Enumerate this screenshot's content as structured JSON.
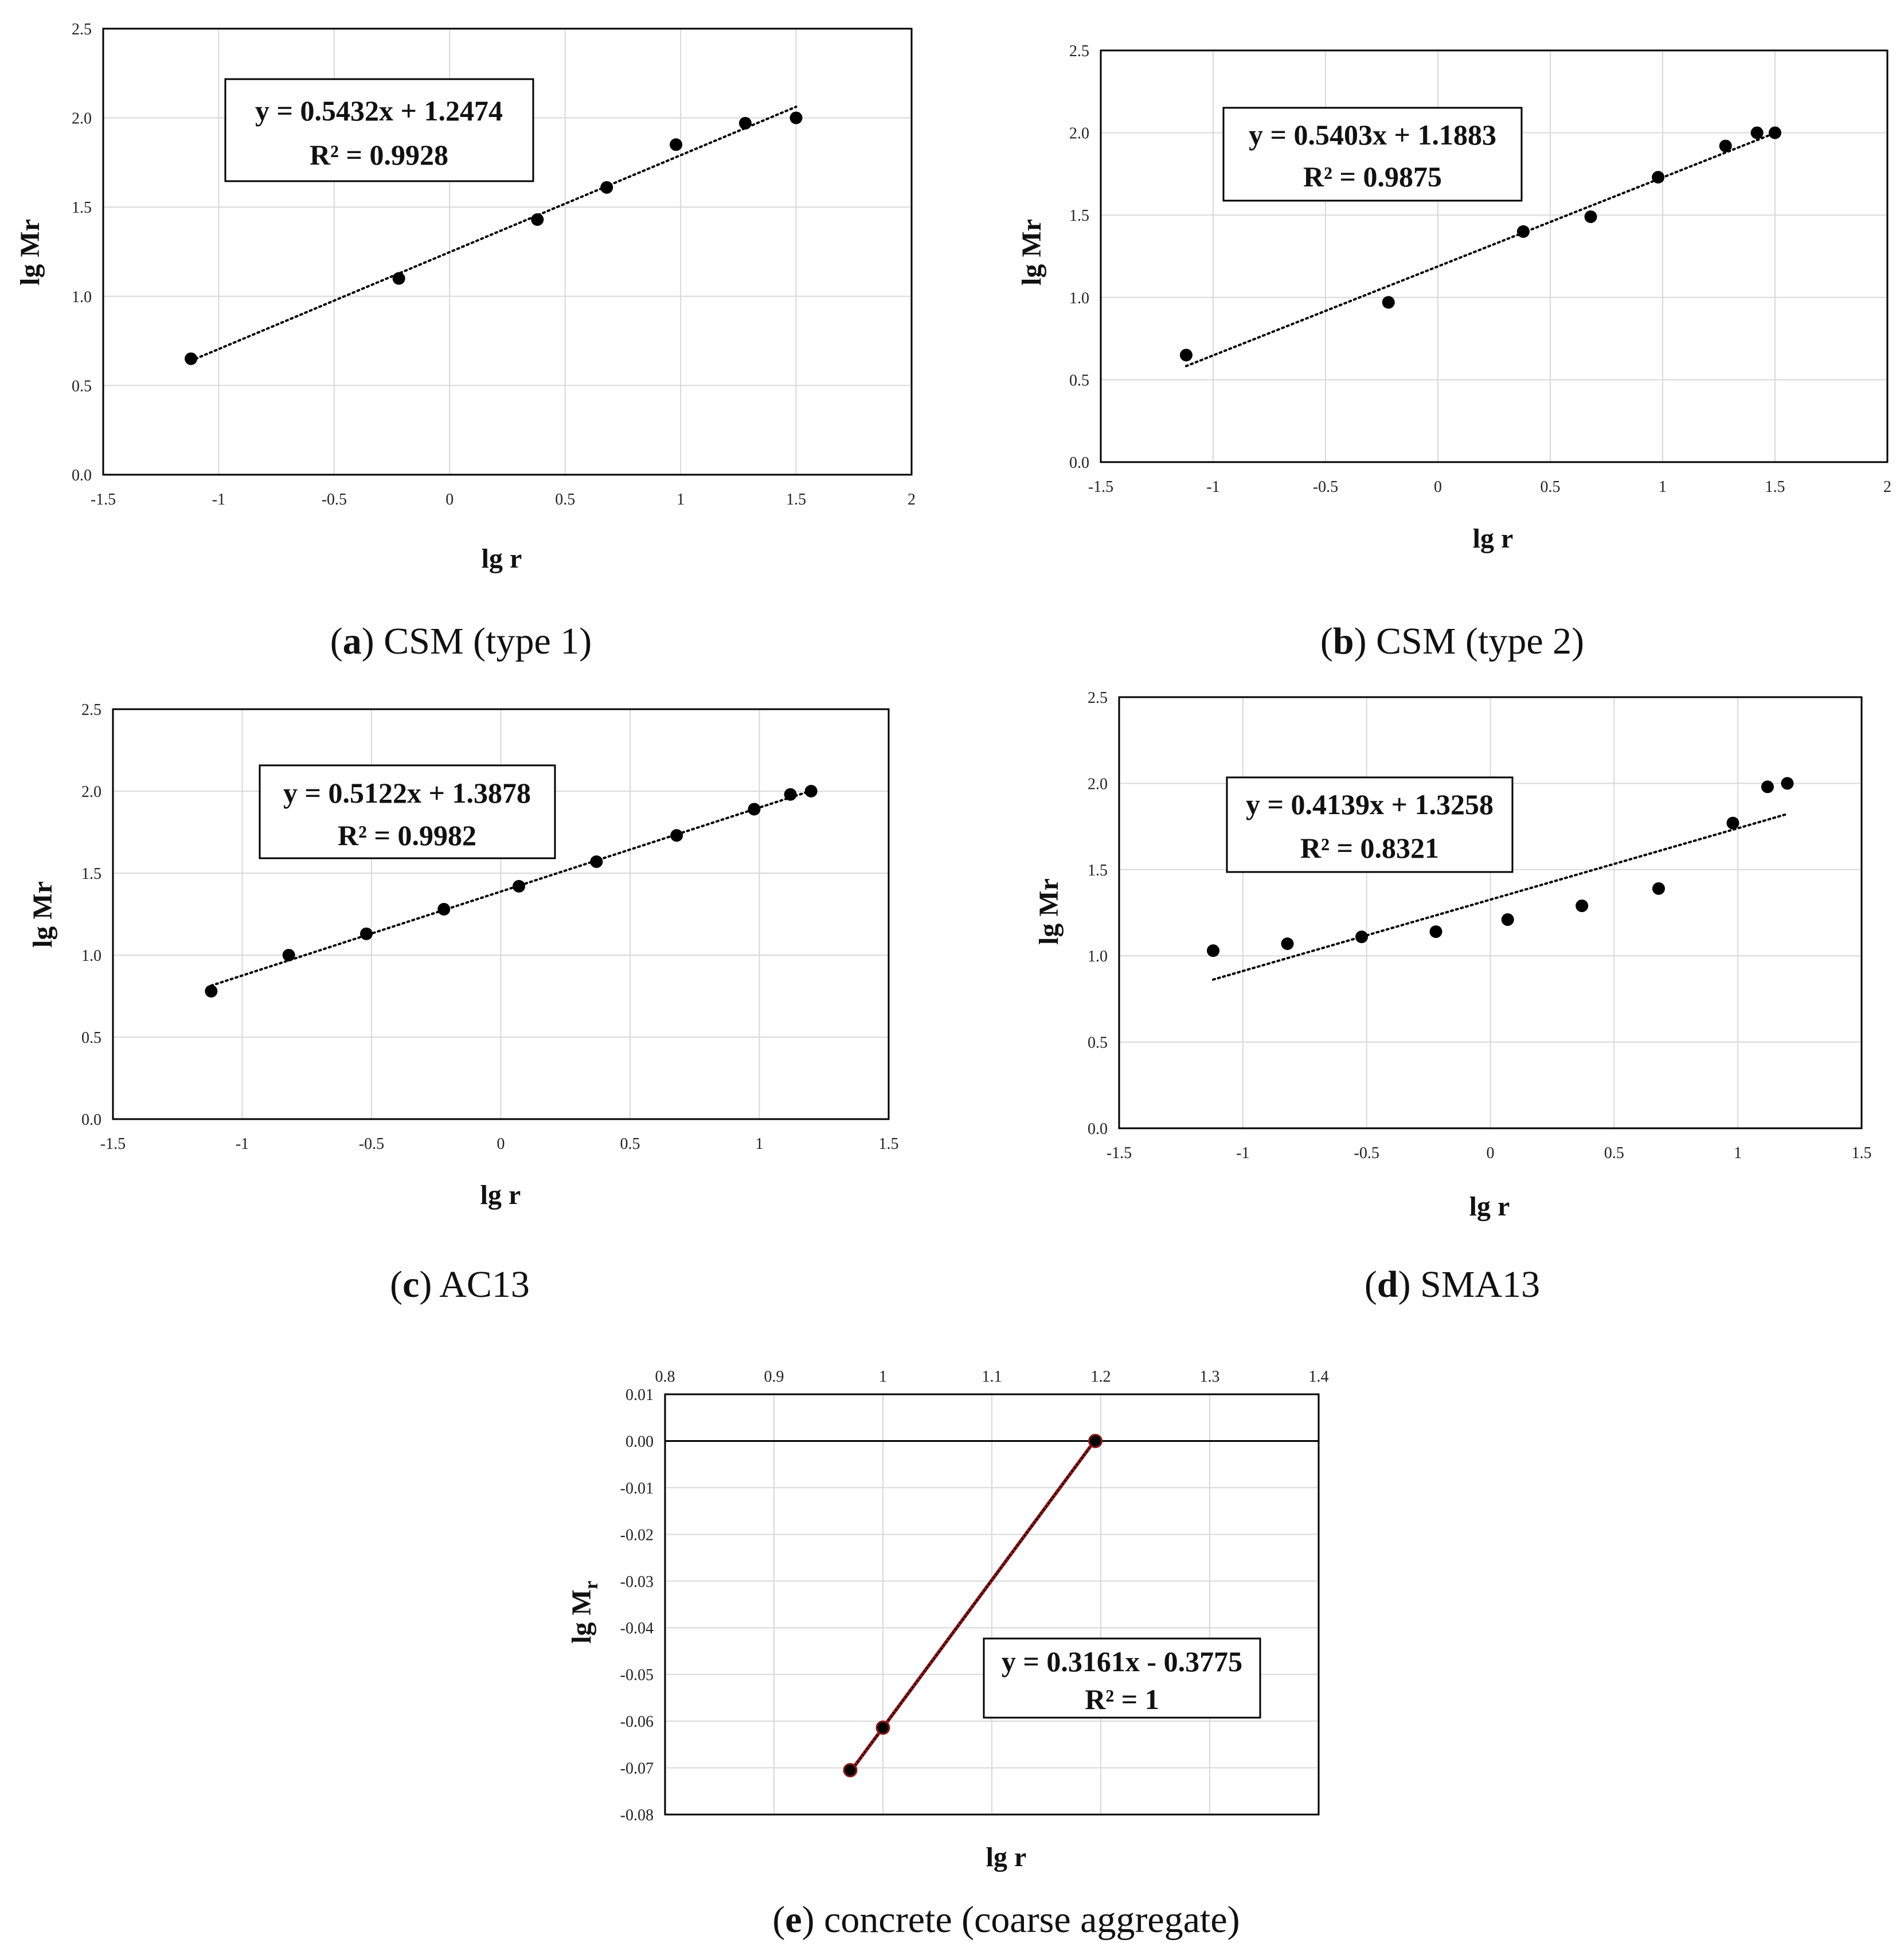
{
  "colors": {
    "grid": "#d9d9d9",
    "frame": "#000000",
    "point": "#000000",
    "trend": "#000000",
    "trend_e": "#8b1a1a",
    "background": "#ffffff"
  },
  "chart_data": [
    {
      "id": "a",
      "type": "scatter",
      "caption_letter": "a",
      "caption_text": "CSM (type 1)",
      "xlabel": "lg r",
      "ylabel": "lg Mr",
      "xlim": [
        -1.5,
        2
      ],
      "ylim": [
        0,
        2.5
      ],
      "xticks": [
        "-1.5",
        "-1",
        "-0.5",
        "0",
        "0.5",
        "1",
        "1.5",
        "2"
      ],
      "yticks": [
        "0.0",
        "0.5",
        "1.0",
        "1.5",
        "2.0",
        "2.5"
      ],
      "x_axis_position": "bottom",
      "x": [
        -1.12,
        -0.22,
        0.38,
        0.68,
        0.98,
        1.28,
        1.5
      ],
      "y": [
        0.65,
        1.1,
        1.43,
        1.61,
        1.85,
        1.97,
        2.0
      ],
      "trendline": {
        "slope": 0.5432,
        "intercept": 1.2474,
        "x_range": [
          -1.12,
          1.5
        ],
        "style": "dotted"
      },
      "equation": "y = 0.5432x + 1.2474",
      "r2": "R² = 0.9928",
      "grid": true
    },
    {
      "id": "b",
      "type": "scatter",
      "caption_letter": "b",
      "caption_text": "CSM (type 2)",
      "xlabel": "lg r",
      "ylabel": "lg Mr",
      "xlim": [
        -1.5,
        2
      ],
      "ylim": [
        0,
        2.5
      ],
      "xticks": [
        "-1.5",
        "-1",
        "-0.5",
        "0",
        "0.5",
        "1",
        "1.5",
        "2"
      ],
      "yticks": [
        "0.0",
        "0.5",
        "1.0",
        "1.5",
        "2.0",
        "2.5"
      ],
      "x_axis_position": "bottom",
      "x": [
        -1.12,
        -0.22,
        0.38,
        0.68,
        0.98,
        1.28,
        1.42,
        1.5
      ],
      "y": [
        0.65,
        0.97,
        1.4,
        1.49,
        1.73,
        1.92,
        2.0,
        2.0
      ],
      "trendline": {
        "slope": 0.5403,
        "intercept": 1.1883,
        "x_range": [
          -1.12,
          1.5
        ],
        "style": "dotted"
      },
      "equation": "y = 0.5403x + 1.1883",
      "r2": "R² = 0.9875",
      "grid": true
    },
    {
      "id": "c",
      "type": "scatter",
      "caption_letter": "c",
      "caption_text": "AC13",
      "xlabel": "lg r",
      "ylabel": "lg Mr",
      "xlim": [
        -1.5,
        1.5
      ],
      "ylim": [
        0,
        2.5
      ],
      "xticks": [
        "-1.5",
        "-1",
        "-0.5",
        "0",
        "0.5",
        "1",
        "1.5"
      ],
      "yticks": [
        "0.0",
        "0.5",
        "1.0",
        "1.5",
        "2.0",
        "2.5"
      ],
      "x_axis_position": "bottom",
      "x": [
        -1.12,
        -0.82,
        -0.52,
        -0.22,
        0.07,
        0.37,
        0.68,
        0.98,
        1.12,
        1.2
      ],
      "y": [
        0.78,
        1.0,
        1.13,
        1.28,
        1.42,
        1.57,
        1.73,
        1.89,
        1.98,
        2.0
      ],
      "trendline": {
        "slope": 0.5122,
        "intercept": 1.3878,
        "x_range": [
          -1.12,
          1.2
        ],
        "style": "dotted"
      },
      "equation": "y = 0.5122x + 1.3878",
      "r2": "R² = 0.9982",
      "grid": true
    },
    {
      "id": "d",
      "type": "scatter",
      "caption_letter": "d",
      "caption_text": "SMA13",
      "xlabel": "lg r",
      "ylabel": "lg Mr",
      "xlim": [
        -1.5,
        1.5
      ],
      "ylim": [
        0,
        2.5
      ],
      "xticks": [
        "-1.5",
        "-1",
        "-0.5",
        "0",
        "0.5",
        "1",
        "1.5"
      ],
      "yticks": [
        "0.0",
        "0.5",
        "1.0",
        "1.5",
        "2.0",
        "2.5"
      ],
      "x_axis_position": "bottom",
      "x": [
        -1.12,
        -0.82,
        -0.52,
        -0.22,
        0.07,
        0.37,
        0.68,
        0.98,
        1.12,
        1.2
      ],
      "y": [
        1.03,
        1.07,
        1.11,
        1.14,
        1.21,
        1.29,
        1.39,
        1.77,
        1.98,
        2.0
      ],
      "trendline": {
        "slope": 0.4139,
        "intercept": 1.3258,
        "x_range": [
          -1.12,
          1.2
        ],
        "style": "dotted"
      },
      "equation": "y = 0.4139x + 1.3258",
      "r2": "R² = 0.8321",
      "grid": true
    },
    {
      "id": "e",
      "type": "scatter",
      "caption_letter": "e",
      "caption_text": "concrete (coarse aggregate)",
      "xlabel": "lg r",
      "ylabel": "lg M",
      "ylabel_subscript": "r",
      "xlim": [
        0.8,
        1.4
      ],
      "ylim": [
        -0.08,
        0.01
      ],
      "xticks": [
        "0.8",
        "0.9",
        "1",
        "1.1",
        "1.2",
        "1.3",
        "1.4"
      ],
      "yticks": [
        "-0.08",
        "-0.07",
        "-0.06",
        "-0.05",
        "-0.04",
        "-0.03",
        "-0.02",
        "-0.01",
        "0.00",
        "0.01"
      ],
      "x_axis_position": "top",
      "zero_line": true,
      "x": [
        0.97,
        1.0,
        1.195
      ],
      "y": [
        -0.0705,
        -0.0614,
        0.0
      ],
      "trendline": {
        "slope": 0.3161,
        "intercept": -0.3775,
        "x_range": [
          0.97,
          1.195
        ],
        "style": "solid-dotted"
      },
      "equation": "y = 0.3161x - 0.3775",
      "r2": "R² = 1",
      "grid": true
    }
  ]
}
